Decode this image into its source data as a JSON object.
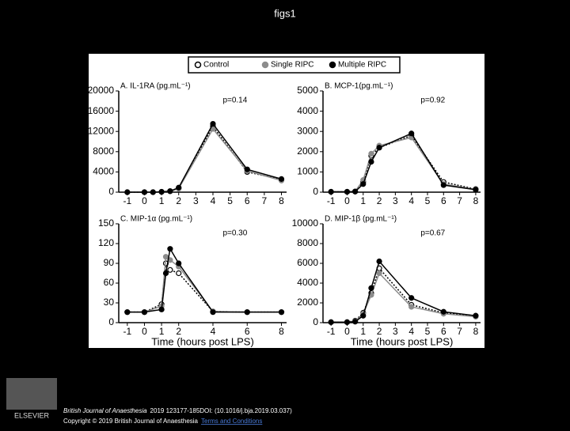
{
  "title": "figs1",
  "footer": {
    "journal": "British Journal of Anaesthesia",
    "citation": "2019 123177-185DOI: (10.1016/j.bja.2019.03.037)",
    "copyright": "Copyright © 2019 British Journal of Anaesthesia",
    "link": "Terms and Conditions",
    "logo_text": "ELSEVIER"
  },
  "chart_data": [
    {
      "type": "line",
      "title": "A. IL-1RA (pg.mL⁻¹)",
      "annotation": "p=0.14",
      "x": [
        -1,
        0,
        0.5,
        1,
        1.5,
        2,
        4,
        6,
        8
      ],
      "xlim": [
        -1.5,
        8.3
      ],
      "xticks": [
        -1,
        0,
        1,
        2,
        3,
        4,
        5,
        6,
        7,
        8
      ],
      "ylim": [
        0,
        20000
      ],
      "yticks": [
        0,
        4000,
        8000,
        12000,
        16000,
        20000
      ],
      "series": [
        {
          "name": "Control",
          "color": "#000000",
          "marker_fill": "#ffffff",
          "line_style": "dotted",
          "values": [
            0,
            0,
            0,
            50,
            200,
            800,
            13000,
            4000,
            2500
          ]
        },
        {
          "name": "Single RIPC",
          "color": "#8c8c8c",
          "marker_fill": "#8c8c8c",
          "line_style": "solid",
          "values": [
            0,
            0,
            0,
            50,
            150,
            700,
            12500,
            4200,
            2300
          ]
        },
        {
          "name": "Multiple RIPC",
          "color": "#000000",
          "marker_fill": "#000000",
          "line_style": "solid",
          "values": [
            0,
            0,
            0,
            80,
            200,
            900,
            13500,
            4500,
            2600
          ]
        }
      ]
    },
    {
      "type": "line",
      "title": "B. MCP-1(pg.mL⁻¹)",
      "annotation": "p=0.92",
      "x": [
        -1,
        0,
        0.5,
        1,
        1.5,
        2,
        4,
        6,
        8
      ],
      "xlim": [
        -1.5,
        8.3
      ],
      "xticks": [
        -1,
        0,
        1,
        2,
        3,
        4,
        5,
        6,
        7,
        8
      ],
      "ylim": [
        0,
        5000
      ],
      "yticks": [
        0,
        1000,
        2000,
        3000,
        4000,
        5000
      ],
      "series": [
        {
          "name": "Control",
          "color": "#000000",
          "marker_fill": "#ffffff",
          "line_style": "dotted",
          "values": [
            20,
            20,
            30,
            500,
            1800,
            2200,
            2800,
            500,
            150
          ]
        },
        {
          "name": "Single RIPC",
          "color": "#8c8c8c",
          "marker_fill": "#8c8c8c",
          "line_style": "solid",
          "values": [
            20,
            20,
            40,
            600,
            1900,
            2300,
            2700,
            400,
            130
          ]
        },
        {
          "name": "Multiple RIPC",
          "color": "#000000",
          "marker_fill": "#000000",
          "line_style": "solid",
          "values": [
            20,
            20,
            30,
            400,
            1500,
            2200,
            2900,
            350,
            120
          ]
        }
      ]
    },
    {
      "type": "line",
      "title": "C. MIP-1α (pg.mL⁻¹)",
      "annotation": "p=0.30",
      "xlabel": "Time (hours post LPS)",
      "x": [
        -1,
        0,
        1,
        1.25,
        1.5,
        2,
        4,
        6,
        8
      ],
      "xlim": [
        -1.5,
        8.3
      ],
      "xticks": [
        -1,
        0,
        1,
        2,
        4,
        6,
        8
      ],
      "ylim": [
        0,
        150
      ],
      "yticks": [
        0,
        30,
        60,
        90,
        120,
        150
      ],
      "series": [
        {
          "name": "Control",
          "color": "#000000",
          "marker_fill": "#ffffff",
          "line_style": "dotted",
          "values": [
            16,
            16,
            28,
            90,
            80,
            75,
            17,
            16,
            16
          ]
        },
        {
          "name": "Single RIPC",
          "color": "#8c8c8c",
          "marker_fill": "#8c8c8c",
          "line_style": "solid",
          "values": [
            16,
            16,
            25,
            100,
            95,
            85,
            17,
            16,
            16
          ]
        },
        {
          "name": "Multiple RIPC",
          "color": "#000000",
          "marker_fill": "#000000",
          "line_style": "solid",
          "values": [
            16,
            16,
            20,
            75,
            112,
            90,
            16,
            16,
            16
          ]
        }
      ]
    },
    {
      "type": "line",
      "title": "D. MIP-1β (pg.mL⁻¹)",
      "annotation": "p=0.67",
      "xlabel": "Time (hours post LPS)",
      "x": [
        -1,
        0,
        0.5,
        1,
        1.5,
        2,
        4,
        6,
        8
      ],
      "xlim": [
        -1.5,
        8.3
      ],
      "xticks": [
        -1,
        0,
        1,
        2,
        3,
        4,
        5,
        6,
        7,
        8
      ],
      "ylim": [
        0,
        10000
      ],
      "yticks": [
        0,
        2000,
        4000,
        6000,
        8000,
        10000
      ],
      "series": [
        {
          "name": "Control",
          "color": "#000000",
          "marker_fill": "#ffffff",
          "line_style": "dotted",
          "values": [
            50,
            50,
            200,
            1000,
            3000,
            5500,
            1800,
            1000,
            700
          ]
        },
        {
          "name": "Single RIPC",
          "color": "#8c8c8c",
          "marker_fill": "#8c8c8c",
          "line_style": "solid",
          "values": [
            50,
            50,
            150,
            900,
            2800,
            5000,
            1600,
            900,
            600
          ]
        },
        {
          "name": "Multiple RIPC",
          "color": "#000000",
          "marker_fill": "#000000",
          "line_style": "solid",
          "values": [
            50,
            50,
            100,
            700,
            3500,
            6200,
            2500,
            1100,
            700
          ]
        }
      ]
    }
  ]
}
